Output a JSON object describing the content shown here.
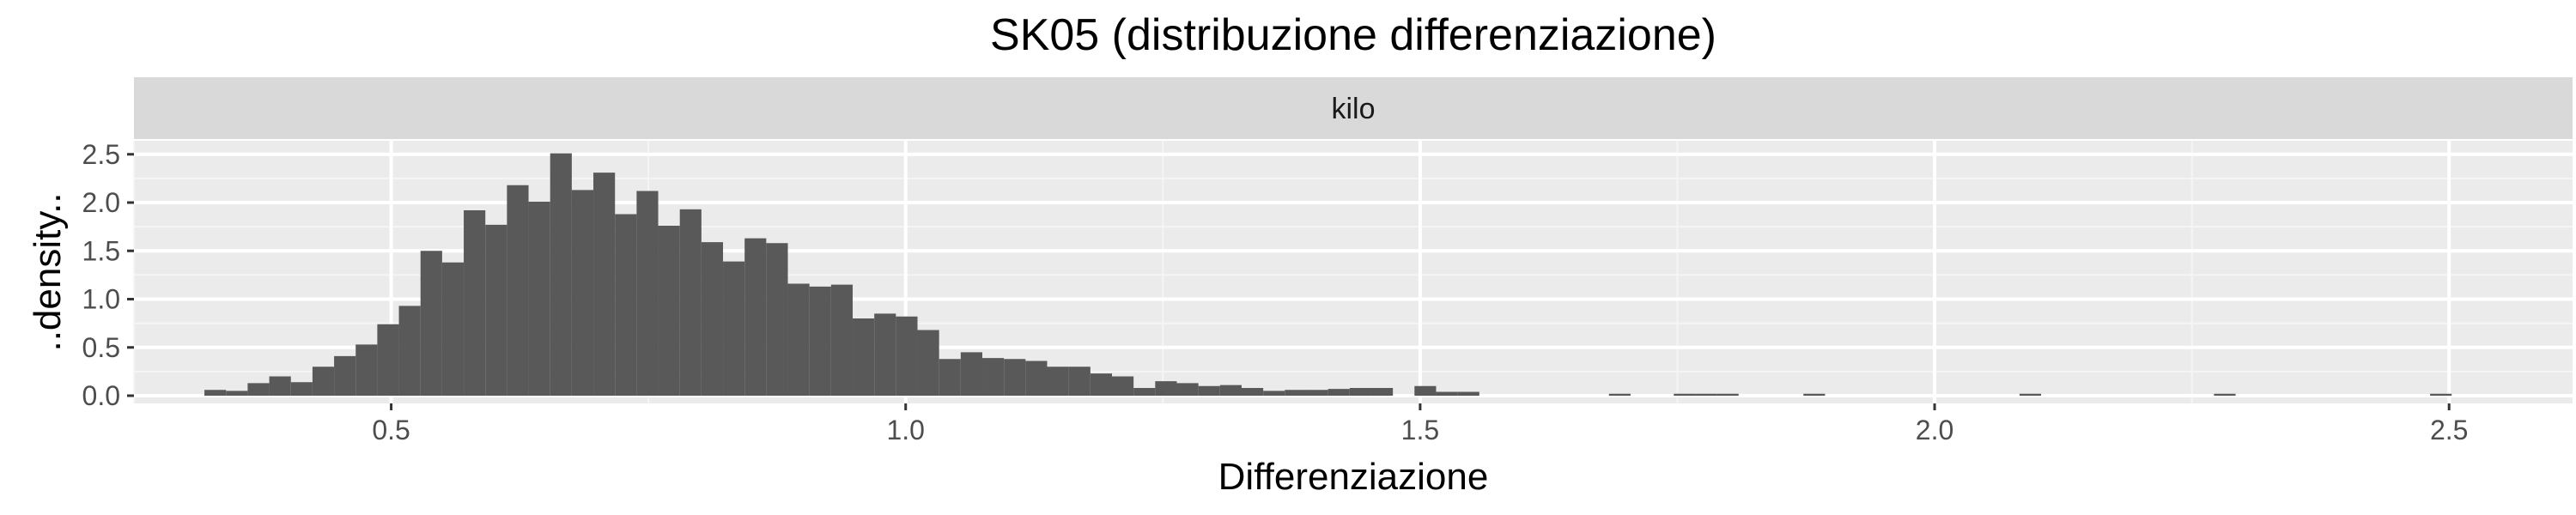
{
  "chart_data": {
    "type": "bar",
    "title": "SK05 (distribuzione differenziazione)",
    "facet_label": "kilo",
    "xlabel": "Differenziazione",
    "ylabel": "..density..",
    "xlim": [
      0.25,
      2.62
    ],
    "ylim": [
      -0.08,
      2.64
    ],
    "x_ticks": [
      0.5,
      1.0,
      1.5,
      2.0,
      2.5
    ],
    "x_tick_labels": [
      "0.5",
      "1.0",
      "1.5",
      "2.0",
      "2.5"
    ],
    "y_ticks": [
      0.0,
      0.5,
      1.0,
      1.5,
      2.0,
      2.5
    ],
    "y_tick_labels": [
      "0.0",
      "0.5",
      "1.0",
      "1.5",
      "2.0",
      "2.5"
    ],
    "grid": true,
    "legend": "none",
    "bin_width": 0.021,
    "bin_centers": [
      0.329,
      0.35,
      0.371,
      0.392,
      0.413,
      0.434,
      0.455,
      0.476,
      0.497,
      0.518,
      0.539,
      0.56,
      0.581,
      0.602,
      0.623,
      0.644,
      0.665,
      0.686,
      0.707,
      0.728,
      0.749,
      0.77,
      0.791,
      0.812,
      0.833,
      0.854,
      0.875,
      0.896,
      0.917,
      0.938,
      0.959,
      0.98,
      1.001,
      1.022,
      1.043,
      1.064,
      1.085,
      1.106,
      1.127,
      1.148,
      1.169,
      1.19,
      1.211,
      1.232,
      1.253,
      1.274,
      1.295,
      1.316,
      1.337,
      1.358,
      1.379,
      1.4,
      1.421,
      1.442,
      1.463,
      1.484,
      1.505,
      1.526,
      1.547,
      1.568,
      1.694,
      1.757,
      1.778,
      1.799,
      1.883,
      2.093,
      2.282,
      2.492
    ],
    "densities": [
      0.06,
      0.05,
      0.13,
      0.2,
      0.14,
      0.3,
      0.41,
      0.53,
      0.74,
      0.93,
      1.5,
      1.38,
      1.92,
      1.77,
      2.18,
      2.01,
      2.51,
      2.13,
      2.31,
      1.88,
      2.12,
      1.76,
      1.93,
      1.59,
      1.39,
      1.63,
      1.58,
      1.16,
      1.13,
      1.15,
      0.8,
      0.85,
      0.82,
      0.68,
      0.38,
      0.45,
      0.39,
      0.38,
      0.36,
      0.3,
      0.3,
      0.23,
      0.2,
      0.08,
      0.15,
      0.13,
      0.1,
      0.11,
      0.08,
      0.05,
      0.06,
      0.06,
      0.07,
      0.08,
      0.08,
      0.0,
      0.1,
      0.04,
      0.04,
      0.0,
      0.02,
      0.02,
      0.02,
      0.02,
      0.02,
      0.02,
      0.02,
      0.02
    ],
    "colors": {
      "bar": "#595959",
      "panel_background": "#ebebeb",
      "grid_major": "#ffffff",
      "grid_minor": "#f5f5f5",
      "strip_background": "#d9d9d9"
    }
  }
}
